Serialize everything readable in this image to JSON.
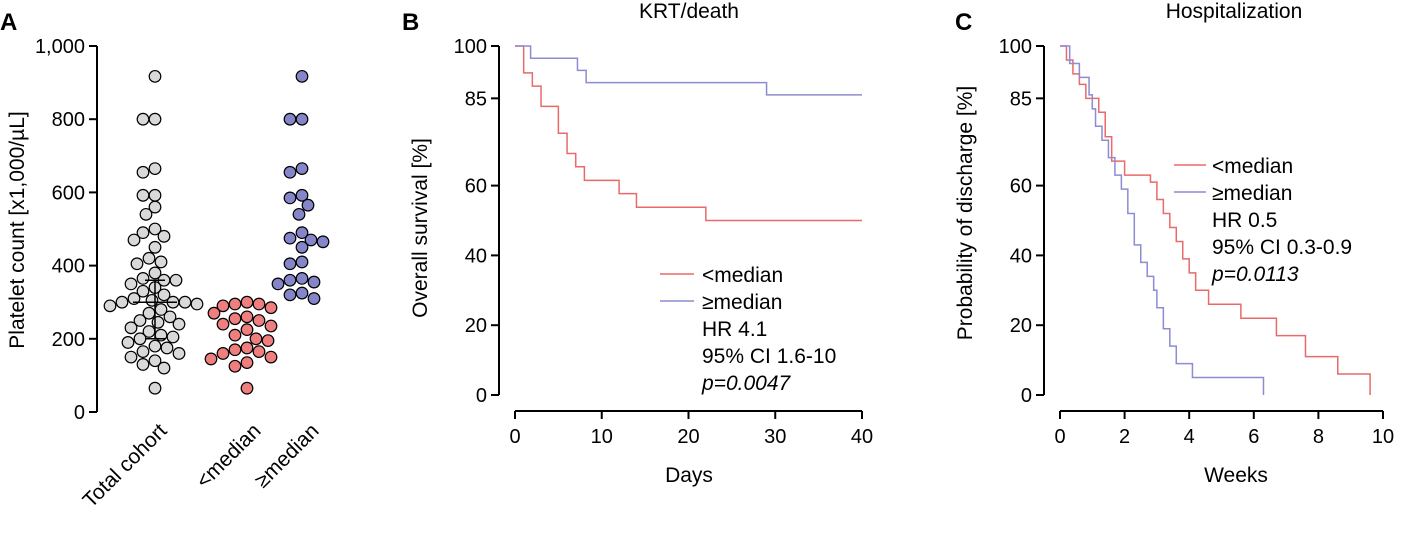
{
  "colors": {
    "low": "#e86a6a",
    "lowFill": "#ef7f7f",
    "high": "#8c8cd1",
    "highFill": "#8585c9",
    "grey": "#d9d9d9"
  },
  "chart_data": [
    {
      "panel": "A",
      "type": "scatter",
      "title": "",
      "ylabel": "Platelet count [x1,000/µL]",
      "ylim": [
        0,
        1000
      ],
      "yticks": [
        0,
        200,
        400,
        600,
        800,
        1000
      ],
      "ytick_labels": [
        "0",
        "200",
        "400",
        "600",
        "800",
        "1,000"
      ],
      "categories": [
        "Total cohort",
        "<median",
        "≥median"
      ],
      "series": [
        {
          "name": "Total cohort",
          "values": [
            917,
            800,
            800,
            665,
            655,
            592,
            592,
            560,
            540,
            500,
            490,
            480,
            470,
            450,
            420,
            410,
            405,
            380,
            365,
            360,
            360,
            350,
            340,
            330,
            320,
            310,
            305,
            300,
            300,
            300,
            295,
            290,
            280,
            270,
            260,
            250,
            245,
            240,
            230,
            220,
            210,
            205,
            200,
            190,
            180,
            175,
            165,
            160,
            150,
            140,
            130,
            120,
            65
          ]
        },
        {
          "name": "<median",
          "values": [
            300,
            295,
            295,
            290,
            285,
            270,
            260,
            255,
            250,
            240,
            235,
            225,
            210,
            200,
            195,
            175,
            170,
            165,
            160,
            150,
            145,
            135,
            125,
            65
          ]
        },
        {
          "name": "≥median",
          "values": [
            917,
            800,
            800,
            665,
            655,
            592,
            585,
            565,
            540,
            490,
            475,
            470,
            465,
            450,
            410,
            405,
            365,
            360,
            355,
            350,
            325,
            320,
            310
          ]
        }
      ]
    },
    {
      "panel": "B",
      "type": "line",
      "title": "KRT/death",
      "xlabel": "Days",
      "ylabel": "Overall survival [%]",
      "xlim": [
        0,
        40
      ],
      "ylim": [
        0,
        100
      ],
      "xticks": [
        0,
        10,
        20,
        30,
        40
      ],
      "yticks": [
        0,
        20,
        40,
        60,
        85,
        100
      ],
      "series": [
        {
          "name": "<median",
          "x": [
            0,
            1,
            2,
            3,
            5,
            6,
            7,
            8,
            12,
            14,
            22,
            40
          ],
          "y": [
            100,
            92.3,
            88.5,
            82.7,
            75,
            69.2,
            65.4,
            61.5,
            57.7,
            53.8,
            50,
            50
          ]
        },
        {
          "name": "≥median",
          "x": [
            0,
            1.8,
            7.2,
            8.2,
            29,
            40
          ],
          "y": [
            100,
            96.5,
            93,
            89.5,
            86,
            86
          ]
        }
      ],
      "legend": [
        "<median",
        "≥median"
      ],
      "stats": {
        "hr": "HR 4.1",
        "ci": "95% CI 1.6-10",
        "p": "p=0.0047"
      }
    },
    {
      "panel": "C",
      "type": "line",
      "title": "Hospitalization",
      "xlabel": "Weeks",
      "ylabel": "Probability of discharge [%]",
      "xlim": [
        0,
        10
      ],
      "ylim": [
        0,
        100
      ],
      "xticks": [
        0,
        2,
        4,
        6,
        8,
        10
      ],
      "yticks": [
        0,
        20,
        40,
        60,
        85,
        100
      ],
      "series": [
        {
          "name": "<median",
          "x": [
            0,
            0.2,
            0.4,
            0.6,
            0.8,
            1.0,
            1.2,
            1.4,
            1.6,
            2.0,
            2.8,
            3.0,
            3.2,
            3.4,
            3.6,
            3.8,
            4.0,
            4.2,
            4.6,
            5.6,
            6.7,
            7.6,
            8.6,
            9.6
          ],
          "y": [
            100,
            96,
            92,
            89,
            85,
            85,
            81,
            74,
            67,
            63,
            61,
            56,
            52,
            48,
            44,
            39,
            35,
            30,
            26,
            22,
            17,
            11,
            6,
            0
          ]
        },
        {
          "name": "≥median",
          "x": [
            0,
            0.3,
            0.6,
            0.9,
            1.0,
            1.1,
            1.3,
            1.5,
            1.7,
            1.9,
            2.1,
            2.3,
            2.5,
            2.7,
            2.9,
            3.0,
            3.2,
            3.4,
            3.6,
            4.1,
            6.3
          ],
          "y": [
            100,
            95,
            91,
            86,
            82,
            77,
            73,
            68,
            63,
            59,
            52,
            43,
            38,
            34,
            30,
            25,
            19,
            14,
            9,
            5,
            0
          ]
        }
      ],
      "legend": [
        "<median",
        "≥median"
      ],
      "stats": {
        "hr": "HR 0.5",
        "ci": "95% CI 0.3-0.9",
        "p": "p=0.0113"
      }
    }
  ]
}
